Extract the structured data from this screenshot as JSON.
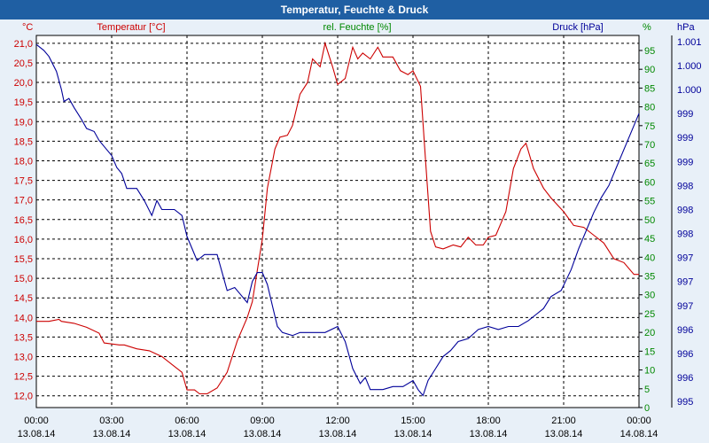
{
  "window": {
    "title": "Temperatur, Feuchte & Druck"
  },
  "colors": {
    "temperature": "#cc0000",
    "humidity": "#008800",
    "pressure": "#000099",
    "grid": "#000000",
    "axis": "#000000"
  },
  "chart_data": {
    "type": "line",
    "title": "Temperatur, Feuchte & Druck",
    "x": {
      "tick_times": [
        "00:00",
        "03:00",
        "06:00",
        "09:00",
        "12:00",
        "15:00",
        "18:00",
        "21:00",
        "00:00"
      ],
      "tick_dates": [
        "13.08.14",
        "13.08.14",
        "13.08.14",
        "13.08.14",
        "13.08.14",
        "13.08.14",
        "13.08.14",
        "13.08.14",
        "14.08.14"
      ],
      "range_hours": [
        0,
        24
      ]
    },
    "axes": {
      "temperature": {
        "label": "Temperatur [°C]",
        "unit": "°C",
        "range": [
          11.7,
          21.2
        ],
        "ticks": [
          "12,0",
          "12,5",
          "13,0",
          "13,5",
          "14,0",
          "14,5",
          "15,0",
          "15,5",
          "16,0",
          "16,5",
          "17,0",
          "17,5",
          "18,0",
          "18,5",
          "19,0",
          "19,5",
          "20,0",
          "20,5",
          "21,0"
        ]
      },
      "humidity": {
        "label": "rel. Feuchte [%]",
        "unit": "%",
        "range": [
          0,
          99
        ],
        "ticks": [
          "0",
          "5",
          "10",
          "15",
          "20",
          "25",
          "30",
          "35",
          "40",
          "45",
          "50",
          "55",
          "60",
          "65",
          "70",
          "75",
          "80",
          "85",
          "90",
          "95"
        ]
      },
      "pressure": {
        "label": "Druck [hPa]",
        "unit": "hPa",
        "range": [
          994.9,
          1001.1
        ],
        "ticks": [
          "995",
          "996",
          "996",
          "996",
          "997",
          "997",
          "997",
          "998",
          "998",
          "998",
          "999",
          "999",
          "999",
          "1.000",
          "1.000",
          "1.001"
        ],
        "tick_values": [
          995.0,
          995.4,
          995.8,
          996.2,
          996.6,
          997.0,
          997.4,
          997.8,
          998.2,
          998.6,
          999.0,
          999.4,
          999.8,
          1000.2,
          1000.6,
          1001.0
        ]
      }
    },
    "series": [
      {
        "name": "Temperatur",
        "axis": "temperature",
        "points": [
          [
            0,
            13.9
          ],
          [
            0.5,
            13.9
          ],
          [
            0.9,
            13.95
          ],
          [
            1,
            13.9
          ],
          [
            1.5,
            13.85
          ],
          [
            2,
            13.75
          ],
          [
            2.5,
            13.6
          ],
          [
            2.7,
            13.35
          ],
          [
            3.3,
            13.3
          ],
          [
            3.5,
            13.3
          ],
          [
            4,
            13.2
          ],
          [
            4.5,
            13.15
          ],
          [
            5,
            13.0
          ],
          [
            5.5,
            12.75
          ],
          [
            5.8,
            12.6
          ],
          [
            6,
            12.15
          ],
          [
            6.3,
            12.15
          ],
          [
            6.5,
            12.05
          ],
          [
            6.8,
            12.05
          ],
          [
            7.2,
            12.2
          ],
          [
            7.6,
            12.6
          ],
          [
            8,
            13.4
          ],
          [
            8.4,
            14.0
          ],
          [
            8.6,
            14.4
          ],
          [
            8.8,
            15.2
          ],
          [
            9,
            16.0
          ],
          [
            9.2,
            17.3
          ],
          [
            9.5,
            18.3
          ],
          [
            9.7,
            18.6
          ],
          [
            10,
            18.65
          ],
          [
            10.2,
            18.9
          ],
          [
            10.5,
            19.7
          ],
          [
            10.8,
            20.0
          ],
          [
            11,
            20.6
          ],
          [
            11.3,
            20.4
          ],
          [
            11.5,
            21.0
          ],
          [
            11.8,
            20.4
          ],
          [
            12,
            19.95
          ],
          [
            12.3,
            20.1
          ],
          [
            12.6,
            20.9
          ],
          [
            12.8,
            20.6
          ],
          [
            13,
            20.75
          ],
          [
            13.3,
            20.6
          ],
          [
            13.6,
            20.9
          ],
          [
            13.8,
            20.65
          ],
          [
            14.2,
            20.65
          ],
          [
            14.5,
            20.3
          ],
          [
            14.8,
            20.2
          ],
          [
            15,
            20.3
          ],
          [
            15.3,
            19.9
          ],
          [
            15.5,
            18.0
          ],
          [
            15.7,
            16.2
          ],
          [
            15.9,
            15.8
          ],
          [
            16.2,
            15.75
          ],
          [
            16.6,
            15.85
          ],
          [
            16.9,
            15.8
          ],
          [
            17.2,
            16.05
          ],
          [
            17.5,
            15.85
          ],
          [
            17.8,
            15.85
          ],
          [
            18,
            16.05
          ],
          [
            18.3,
            16.1
          ],
          [
            18.7,
            16.7
          ],
          [
            19,
            17.8
          ],
          [
            19.3,
            18.3
          ],
          [
            19.5,
            18.45
          ],
          [
            19.8,
            17.8
          ],
          [
            20.2,
            17.3
          ],
          [
            20.5,
            17.05
          ],
          [
            21,
            16.7
          ],
          [
            21.4,
            16.35
          ],
          [
            21.8,
            16.3
          ],
          [
            22.2,
            16.1
          ],
          [
            22.6,
            15.9
          ],
          [
            23,
            15.5
          ],
          [
            23.4,
            15.4
          ],
          [
            23.8,
            15.1
          ],
          [
            24,
            15.1
          ]
        ]
      },
      {
        "name": "rel. Feuchte",
        "axis": "humidity"
      },
      {
        "name": "Druck",
        "axis": "pressure",
        "points": [
          [
            0,
            1000.95
          ],
          [
            0.3,
            1000.85
          ],
          [
            0.5,
            1000.75
          ],
          [
            0.8,
            1000.5
          ],
          [
            1,
            1000.2
          ],
          [
            1.1,
            1000.0
          ],
          [
            1.3,
            1000.05
          ],
          [
            1.5,
            999.9
          ],
          [
            1.8,
            999.7
          ],
          [
            2,
            999.55
          ],
          [
            2.3,
            999.5
          ],
          [
            2.5,
            999.35
          ],
          [
            2.8,
            999.2
          ],
          [
            3,
            999.1
          ],
          [
            3.2,
            998.9
          ],
          [
            3.4,
            998.8
          ],
          [
            3.6,
            998.55
          ],
          [
            4,
            998.55
          ],
          [
            4.3,
            998.35
          ],
          [
            4.6,
            998.1
          ],
          [
            4.8,
            998.35
          ],
          [
            5,
            998.2
          ],
          [
            5.5,
            998.2
          ],
          [
            5.8,
            998.1
          ],
          [
            6,
            997.75
          ],
          [
            6.2,
            997.55
          ],
          [
            6.4,
            997.35
          ],
          [
            6.7,
            997.45
          ],
          [
            7.2,
            997.45
          ],
          [
            7.6,
            996.85
          ],
          [
            7.9,
            996.9
          ],
          [
            8.1,
            996.8
          ],
          [
            8.4,
            996.65
          ],
          [
            8.6,
            997.0
          ],
          [
            8.8,
            997.15
          ],
          [
            9,
            997.15
          ],
          [
            9.2,
            996.95
          ],
          [
            9.4,
            996.6
          ],
          [
            9.6,
            996.25
          ],
          [
            9.8,
            996.15
          ],
          [
            10.2,
            996.1
          ],
          [
            10.5,
            996.15
          ],
          [
            11.5,
            996.15
          ],
          [
            12,
            996.25
          ],
          [
            12.3,
            996.0
          ],
          [
            12.6,
            995.55
          ],
          [
            12.9,
            995.3
          ],
          [
            13.1,
            995.4
          ],
          [
            13.3,
            995.2
          ],
          [
            13.8,
            995.2
          ],
          [
            14.2,
            995.25
          ],
          [
            14.6,
            995.25
          ],
          [
            15,
            995.35
          ],
          [
            15.2,
            995.2
          ],
          [
            15.4,
            995.1
          ],
          [
            15.6,
            995.35
          ],
          [
            15.9,
            995.55
          ],
          [
            16.2,
            995.75
          ],
          [
            16.5,
            995.85
          ],
          [
            16.8,
            996.0
          ],
          [
            17.2,
            996.05
          ],
          [
            17.6,
            996.2
          ],
          [
            18,
            996.25
          ],
          [
            18.4,
            996.2
          ],
          [
            18.8,
            996.25
          ],
          [
            19.2,
            996.25
          ],
          [
            19.6,
            996.35
          ],
          [
            19.9,
            996.45
          ],
          [
            20.2,
            996.55
          ],
          [
            20.5,
            996.75
          ],
          [
            20.9,
            996.85
          ],
          [
            21.3,
            997.2
          ],
          [
            21.6,
            997.55
          ],
          [
            21.9,
            997.85
          ],
          [
            22.2,
            998.15
          ],
          [
            22.5,
            998.4
          ],
          [
            22.8,
            998.6
          ],
          [
            23.1,
            998.9
          ],
          [
            23.4,
            999.2
          ],
          [
            23.7,
            999.5
          ],
          [
            24,
            999.8
          ]
        ]
      }
    ],
    "grid": true
  }
}
